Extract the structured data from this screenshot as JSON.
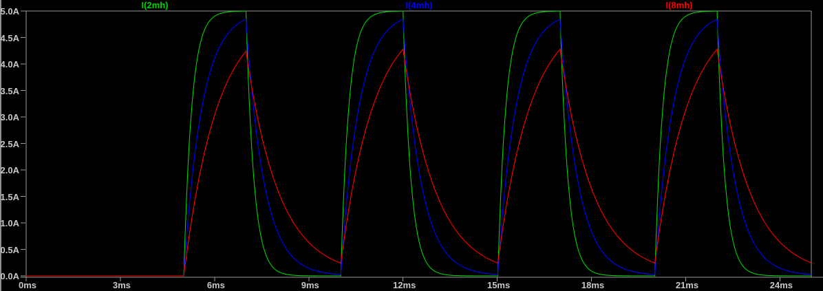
{
  "window": {
    "background": "#000000",
    "left_border_color": "#8f8f8f",
    "frame_color": "#9c9c9c",
    "tick_label_color": "#c8c8c8"
  },
  "chart_data": {
    "type": "line",
    "title": "",
    "x_axis": {
      "unit": "ms",
      "min_ms": 0,
      "max_ms": 25,
      "tick_interval_ms": 3,
      "tick_labels": [
        "0ms",
        "3ms",
        "6ms",
        "9ms",
        "12ms",
        "15ms",
        "18ms",
        "21ms",
        "24ms"
      ]
    },
    "y_axis": {
      "unit": "A",
      "min_A": 0,
      "max_A": 5,
      "tick_interval_A": 0.5,
      "tick_labels": [
        "5.0A",
        "4.5A",
        "4.0A",
        "3.5A",
        "3.0A",
        "2.5A",
        "2.0A",
        "1.5A",
        "1.0A",
        "0.5A",
        "0.0A"
      ]
    },
    "grid": "frame-only",
    "legend_position": "top",
    "series": [
      {
        "name": "I(2mh)",
        "color": "#00d200",
        "tau_ms": 0.25,
        "first_peak_A": 5.0,
        "residual_at_next_pulse_A": 0.0
      },
      {
        "name": "I(4mh)",
        "color": "#0000ff",
        "tau_ms": 0.57,
        "first_peak_A": 4.85,
        "residual_at_next_pulse_A": 0.01
      },
      {
        "name": "I(8mh)",
        "color": "#ff0000",
        "tau_ms": 1.05,
        "first_peak_A": 4.26,
        "residual_at_next_pulse_A": 0.24
      }
    ],
    "excitation": {
      "type": "pulse-train",
      "level_A": 5,
      "t_start_ms": 5,
      "on_duration_ms": 2,
      "period_ms": 5,
      "t_end_ms": 25
    }
  }
}
